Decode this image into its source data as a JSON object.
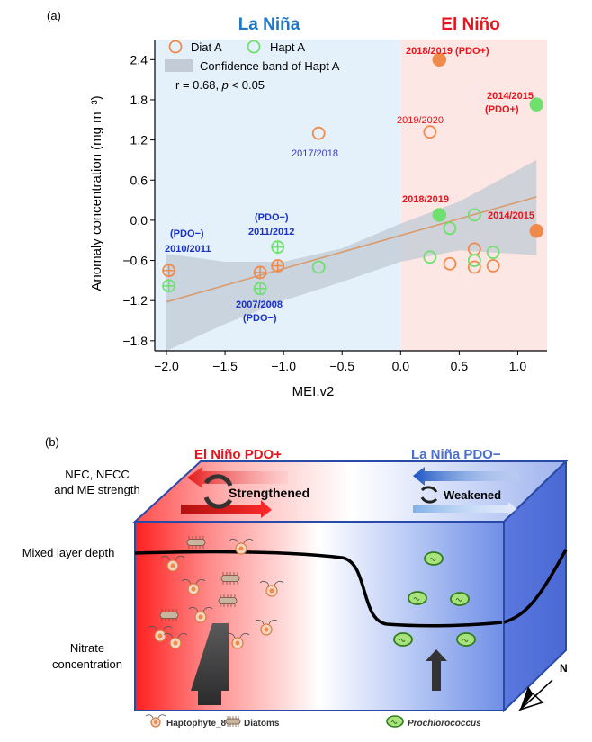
{
  "panel_a": {
    "label": "(a)",
    "la_nina_title": "La Niña",
    "el_nino_title": "El Niño",
    "legend": {
      "diat": "Diat A",
      "hapt": "Hapt A",
      "band": "Confidence band of Hapt A",
      "stats_r": "r = 0.68, ",
      "stats_p": "p",
      "stats_rest": " < 0.05"
    },
    "colors": {
      "diat": "#f08a4b",
      "hapt": "#6ee06e",
      "red": "#e8141b",
      "blue": "#1a30c8",
      "la_nina_bg": "#e4f1fb",
      "el_nino_bg": "#fde7e4",
      "band": "#c3ccd6",
      "fit": "#d99a6c"
    },
    "annotations": {
      "a1": "2018/2019 (PDO+)",
      "a2": "2014/2015",
      "a3": "(PDO+)",
      "a4": "2019/2020",
      "a5": "2017/2018",
      "a6": "2018/2019",
      "a7": "2014/2015",
      "a8": "(PDO−)",
      "a9": "2010/2011",
      "a10": "(PDO−)",
      "a11": "2011/2012",
      "a12": "2007/2008",
      "a13": "(PDO−)"
    }
  },
  "chart_data": {
    "type": "scatter",
    "xlabel": "MEI.v2",
    "ylabel": "Anomaly concentration (mg m⁻³)",
    "xlim": [
      -2.1,
      1.25
    ],
    "ylim": [
      -1.95,
      2.7
    ],
    "xticks": [
      -2.0,
      -1.5,
      -1.0,
      -0.5,
      0.0,
      0.5,
      1.0
    ],
    "xtick_labels": [
      "−2.0",
      "−1.5",
      "−1.0",
      "−0.5",
      "0.0",
      "0.5",
      "1.0"
    ],
    "yticks": [
      2.4,
      1.8,
      1.2,
      0.6,
      0.0,
      -0.6,
      -1.2,
      -1.8
    ],
    "ytick_labels": [
      "2.4",
      "1.8",
      "1.2",
      "0.6",
      "0.0",
      "−0.6",
      "−1.2",
      "−1.8"
    ],
    "series": [
      {
        "name": "Diat A",
        "points": [
          {
            "x": -1.98,
            "y": -0.75,
            "style": "crossed"
          },
          {
            "x": -1.2,
            "y": -0.78,
            "style": "crossed"
          },
          {
            "x": -1.05,
            "y": -0.68,
            "style": "crossed"
          },
          {
            "x": -0.7,
            "y": 1.3,
            "style": "open"
          },
          {
            "x": 0.25,
            "y": 1.32,
            "style": "open"
          },
          {
            "x": 0.33,
            "y": 2.4,
            "style": "filled"
          },
          {
            "x": 0.42,
            "y": -0.65,
            "style": "open"
          },
          {
            "x": 0.63,
            "y": -0.43,
            "style": "open"
          },
          {
            "x": 0.63,
            "y": -0.7,
            "style": "open"
          },
          {
            "x": 0.79,
            "y": -0.68,
            "style": "open"
          },
          {
            "x": 1.16,
            "y": -0.16,
            "style": "filled"
          }
        ]
      },
      {
        "name": "Hapt A",
        "points": [
          {
            "x": -1.98,
            "y": -0.98,
            "style": "crossed"
          },
          {
            "x": -1.2,
            "y": -1.02,
            "style": "crossed"
          },
          {
            "x": -1.05,
            "y": -0.4,
            "style": "crossed"
          },
          {
            "x": -0.7,
            "y": -0.7,
            "style": "open"
          },
          {
            "x": 0.25,
            "y": -0.55,
            "style": "open"
          },
          {
            "x": 0.33,
            "y": 0.08,
            "style": "filled"
          },
          {
            "x": 0.42,
            "y": -0.12,
            "style": "open"
          },
          {
            "x": 0.63,
            "y": 0.08,
            "style": "open"
          },
          {
            "x": 0.63,
            "y": -0.6,
            "style": "open"
          },
          {
            "x": 0.79,
            "y": -0.48,
            "style": "open"
          },
          {
            "x": 1.16,
            "y": 1.73,
            "style": "filled"
          }
        ]
      }
    ],
    "fit_line": {
      "x": [
        -2.0,
        1.16
      ],
      "y": [
        -1.22,
        0.35
      ]
    },
    "confidence_band": {
      "x": [
        -2.0,
        -1.5,
        -1.0,
        -0.5,
        0.0,
        0.5,
        1.16
      ],
      "upper": [
        -0.5,
        -0.62,
        -0.62,
        -0.42,
        -0.05,
        0.28,
        0.9
      ],
      "lower": [
        -1.95,
        -1.55,
        -1.2,
        -0.92,
        -0.62,
        -0.45,
        -0.52
      ]
    }
  },
  "panel_b": {
    "label": "(b)",
    "el_nino_label": "El Niño PDO+",
    "la_nina_label": "La Niña PDO−",
    "strength_label_1": "NEC, NECC",
    "strength_label_2": "and ME strength",
    "strengthened": "Strengthened",
    "weakened": "Weakened",
    "mld_label": "Mixed layer depth",
    "nitrate_label_1": "Nitrate",
    "nitrate_label_2": "concentration",
    "north": "N",
    "legend_hapto": "Haptophyte_8",
    "legend_diatoms": "Diatoms",
    "legend_prochloro": "Prochlorococcus"
  }
}
